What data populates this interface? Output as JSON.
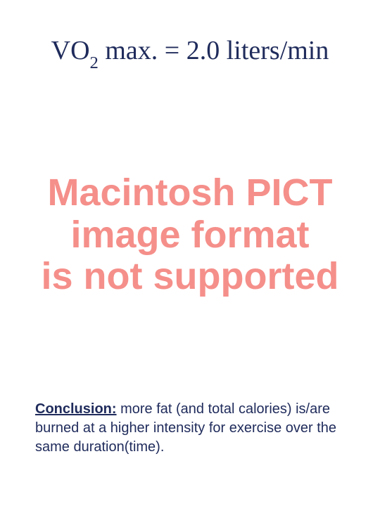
{
  "title": {
    "prefix": "VO",
    "subscript": "2",
    "suffix": " max. = 2.0 liters/min",
    "color": "#1f2b5b",
    "fontsize": 38
  },
  "error_block": {
    "lines": [
      "Macintosh PICT",
      "image format",
      "is not supported"
    ],
    "color": "#f58f8a",
    "fontsize": 54,
    "font_weight": 700
  },
  "conclusion": {
    "label": "Conclusion:",
    "text": "  more fat (and total calories) is/are burned at a higher intensity for exercise over the same duration(time).",
    "color": "#1f2b5b",
    "fontsize": 20
  },
  "background_color": "#ffffff"
}
